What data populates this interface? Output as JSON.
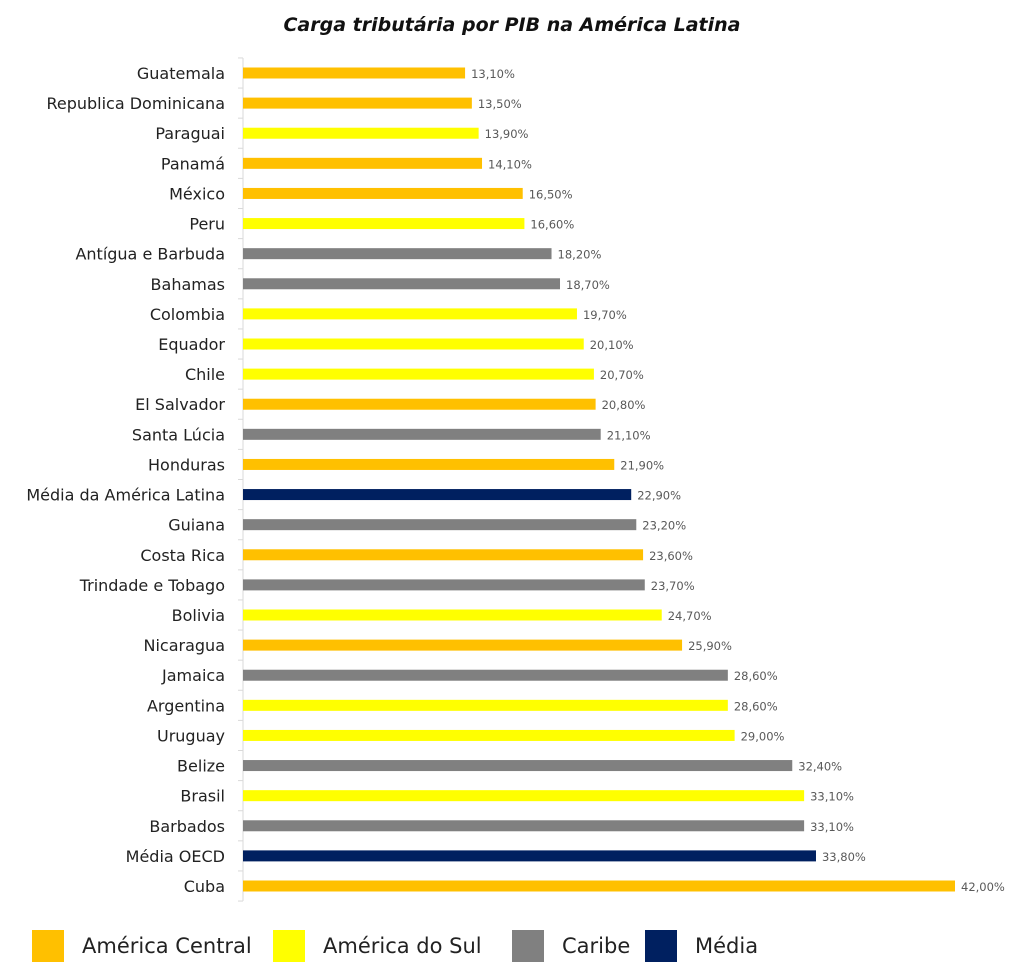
{
  "chart_data": {
    "type": "bar",
    "orientation": "horizontal",
    "title": "Carga tributária por PIB na América Latina",
    "xlabel": "",
    "ylabel": "",
    "xlim": [
      0,
      42
    ],
    "grid": false,
    "legend_position": "bottom",
    "legend": [
      {
        "key": "central",
        "label": "América Central",
        "color": "#FFC000"
      },
      {
        "key": "sul",
        "label": "América do Sul",
        "color": "#FFFF00"
      },
      {
        "key": "caribe",
        "label": "Caribe",
        "color": "#808080"
      },
      {
        "key": "media",
        "label": "Média",
        "color": "#002060"
      }
    ],
    "categories": [
      "Guatemala",
      "Republica Dominicana",
      "Paraguai",
      "Panamá",
      "México",
      "Peru",
      "Antígua e Barbuda",
      "Bahamas",
      "Colombia",
      "Equador",
      "Chile",
      "El Salvador",
      "Santa Lúcia",
      "Honduras",
      "Média da América Latina",
      "Guiana",
      "Costa Rica",
      "Trindade e Tobago",
      "Bolivia",
      "Nicaragua",
      "Jamaica",
      "Argentina",
      "Uruguay",
      "Belize",
      "Brasil",
      "Barbados",
      "Média OECD",
      "Cuba"
    ],
    "values": [
      13.1,
      13.5,
      13.9,
      14.1,
      16.5,
      16.6,
      18.2,
      18.7,
      19.7,
      20.1,
      20.7,
      20.8,
      21.1,
      21.9,
      22.9,
      23.2,
      23.6,
      23.7,
      24.7,
      25.9,
      28.6,
      28.6,
      29.0,
      32.4,
      33.1,
      33.1,
      33.8,
      42.0
    ],
    "labels": [
      "13,10%",
      "13,50%",
      "13,90%",
      "14,10%",
      "16,50%",
      "16,60%",
      "18,20%",
      "18,70%",
      "19,70%",
      "20,10%",
      "20,70%",
      "20,80%",
      "21,10%",
      "21,90%",
      "22,90%",
      "23,20%",
      "23,60%",
      "23,70%",
      "24,70%",
      "25,90%",
      "28,60%",
      "28,60%",
      "29,00%",
      "32,40%",
      "33,10%",
      "33,10%",
      "33,80%",
      "42,00%"
    ],
    "groups": [
      "central",
      "central",
      "sul",
      "central",
      "central",
      "sul",
      "caribe",
      "caribe",
      "sul",
      "sul",
      "sul",
      "central",
      "caribe",
      "central",
      "media",
      "caribe",
      "central",
      "caribe",
      "sul",
      "central",
      "caribe",
      "sul",
      "sul",
      "caribe",
      "sul",
      "caribe",
      "media",
      "central"
    ]
  }
}
